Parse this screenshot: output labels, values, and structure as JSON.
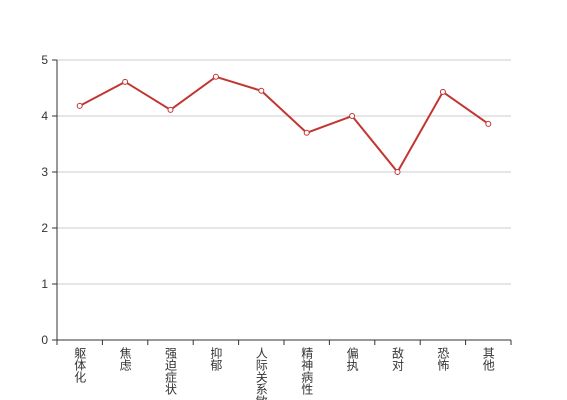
{
  "chart_data": {
    "type": "line",
    "categories": [
      "躯体化",
      "焦虑",
      "强迫症状",
      "抑郁",
      "人际关系敏感",
      "精神病性",
      "偏执",
      "敌对",
      "恐怖",
      "其他"
    ],
    "series": [
      {
        "color": "#c23531",
        "values": [
          4.18,
          4.61,
          4.11,
          4.7,
          4.45,
          3.7,
          4.0,
          3.0,
          4.43,
          3.86
        ]
      }
    ],
    "ylim": [
      0,
      5
    ],
    "yticks": [
      0,
      1,
      2,
      3,
      4,
      5
    ],
    "grid": true
  }
}
